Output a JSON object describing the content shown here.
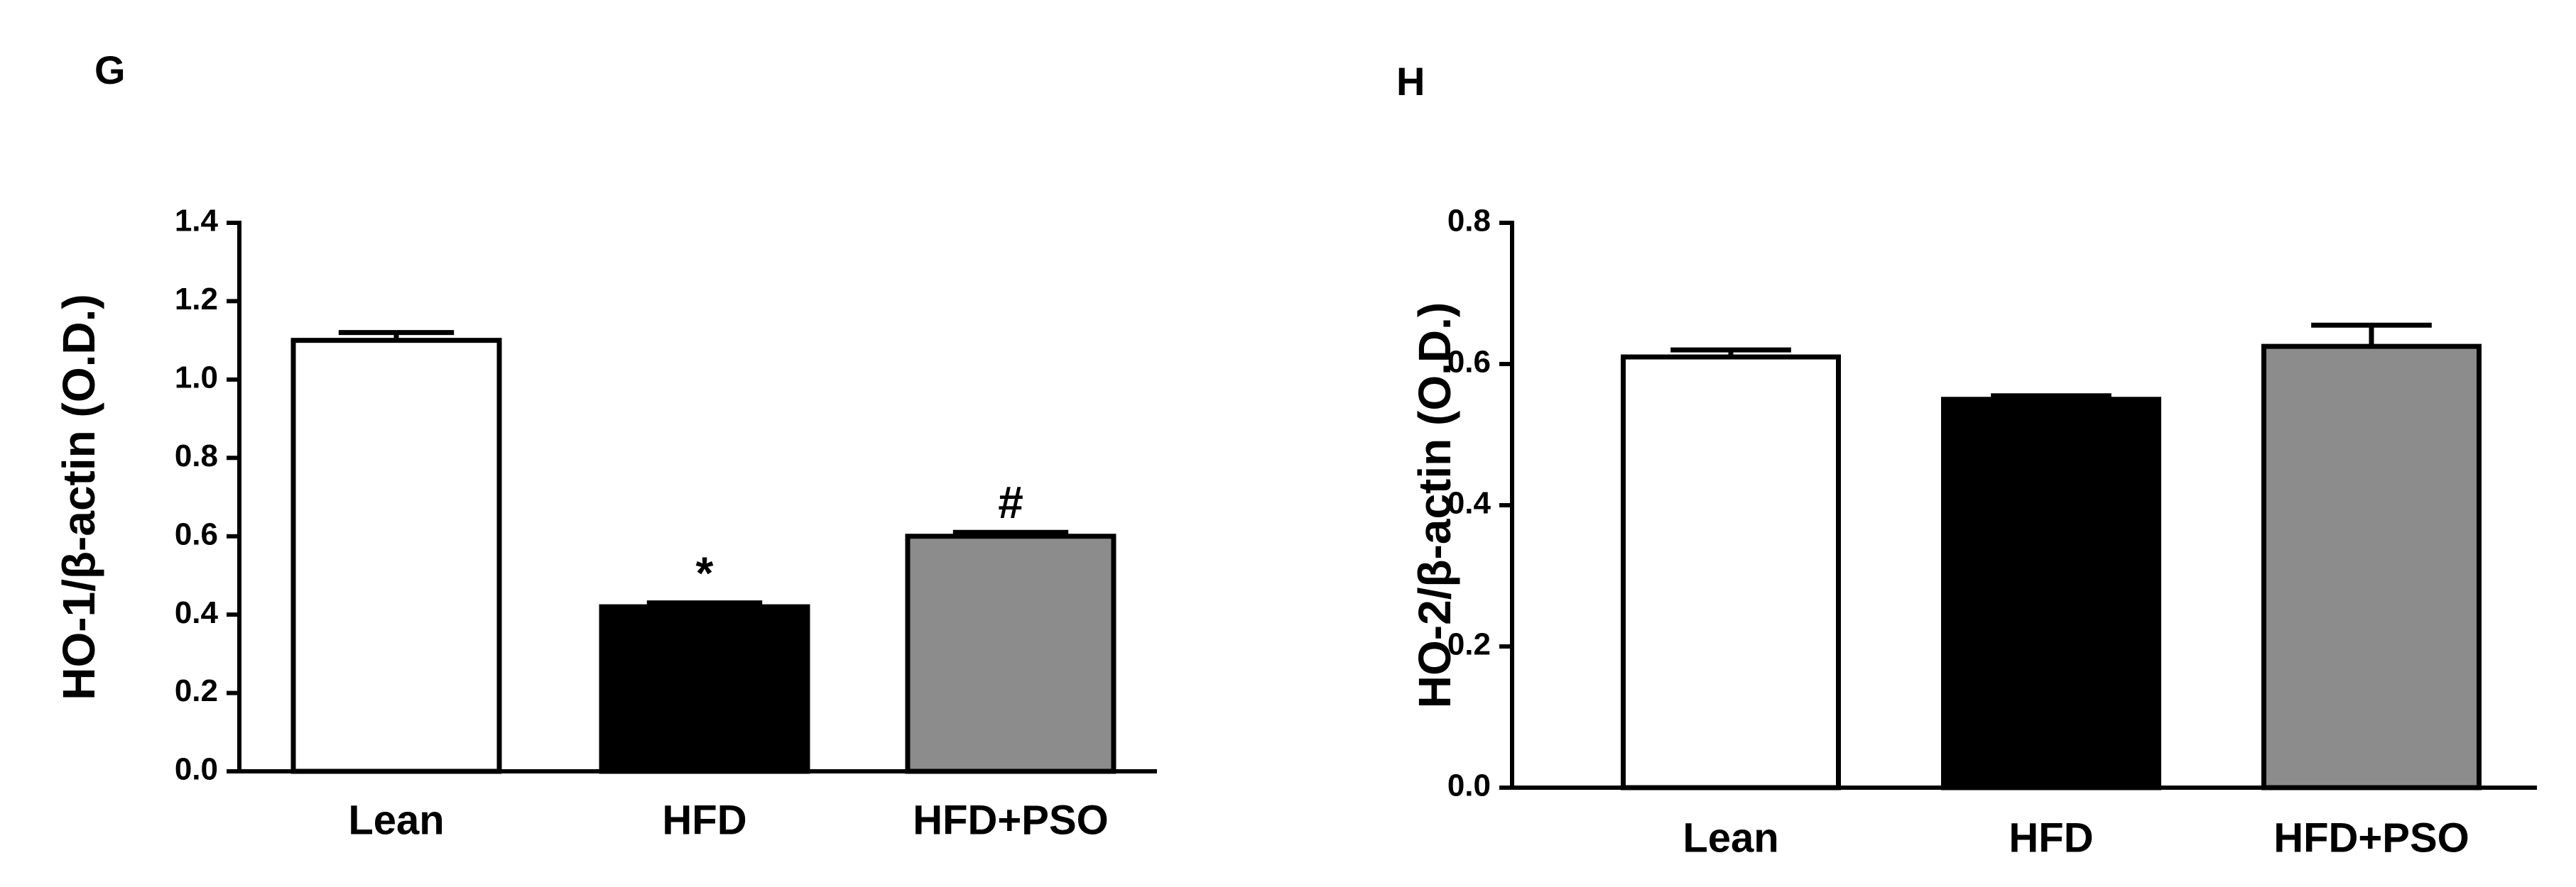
{
  "chart_data": [
    {
      "type": "bar",
      "panel_label": "G",
      "y_label": "HO-1/β-actin (O.D.)",
      "categories": [
        "Lean",
        "HFD",
        "HFD+PSO"
      ],
      "values": [
        1.1,
        0.42,
        0.6
      ],
      "errors": [
        0.02,
        0.01,
        0.01
      ],
      "annotations": [
        null,
        "*",
        "#"
      ],
      "colors": [
        "#ffffff",
        "#000000",
        "#8c8c8c"
      ],
      "ylim": [
        0,
        1.4
      ],
      "yticks": [
        {
          "value": 0,
          "label": "0.0"
        },
        0.2,
        0.4,
        0.6,
        0.8,
        {
          "value": 1,
          "label": "1.0"
        },
        1.2,
        1.4
      ]
    },
    {
      "type": "bar",
      "panel_label": "H",
      "y_label": "HO-2/β-actin (O.D.)",
      "categories": [
        "Lean",
        "HFD",
        "HFD+PSO"
      ],
      "values": [
        0.61,
        0.55,
        0.625
      ],
      "errors": [
        0.01,
        0.005,
        0.03
      ],
      "annotations": [
        null,
        null,
        null
      ],
      "colors": [
        "#ffffff",
        "#000000",
        "#8c8c8c"
      ],
      "ylim": [
        0,
        0.8
      ],
      "yticks": [
        {
          "value": 0,
          "label": "0.0"
        },
        0.2,
        0.4,
        0.6,
        0.8
      ]
    }
  ]
}
